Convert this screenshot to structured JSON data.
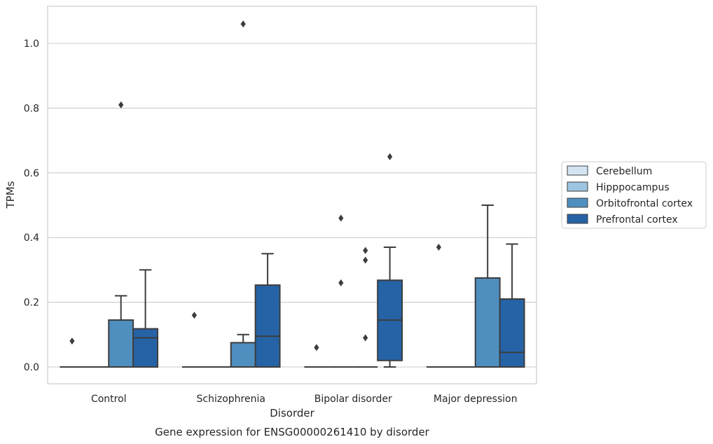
{
  "chart_data": {
    "type": "box",
    "title": "",
    "caption": "Gene expression for ENSG00000261410 by disorder",
    "xlabel": "Disorder",
    "ylabel": "TPMs",
    "ylim": [
      -0.05,
      1.12
    ],
    "yticks": [
      0.0,
      0.2,
      0.4,
      0.6,
      0.8,
      1.0
    ],
    "ytick_labels": [
      "0.0",
      "0.2",
      "0.4",
      "0.6",
      "0.8",
      "1.0"
    ],
    "grid": "horizontal",
    "legend_position": "right",
    "categories": [
      "Control",
      "Schizophrenia",
      "Bipolar disorder",
      "Major depression"
    ],
    "series": [
      {
        "name": "Cerebellum",
        "color": "#d3e4f3",
        "boxes": [
          {
            "q1": 0,
            "median": 0,
            "q3": 0,
            "whisker_low": 0,
            "whisker_high": 0,
            "outliers": [
              0.08
            ]
          },
          {
            "q1": 0,
            "median": 0,
            "q3": 0,
            "whisker_low": 0,
            "whisker_high": 0,
            "outliers": [
              0.16
            ]
          },
          {
            "q1": 0,
            "median": 0,
            "q3": 0,
            "whisker_low": 0,
            "whisker_high": 0,
            "outliers": [
              0.06
            ]
          },
          {
            "q1": 0,
            "median": 0,
            "q3": 0,
            "whisker_low": 0,
            "whisker_high": 0,
            "outliers": [
              0.37
            ]
          }
        ]
      },
      {
        "name": "Hipppocampus",
        "color": "#9dc4e0",
        "boxes": [
          {
            "q1": 0,
            "median": 0,
            "q3": 0,
            "whisker_low": 0,
            "whisker_high": 0,
            "outliers": []
          },
          {
            "q1": 0,
            "median": 0,
            "q3": 0,
            "whisker_low": 0,
            "whisker_high": 0,
            "outliers": []
          },
          {
            "q1": 0,
            "median": 0,
            "q3": 0,
            "whisker_low": 0,
            "whisker_high": 0,
            "outliers": [
              0.26,
              0.46
            ]
          },
          {
            "q1": 0,
            "median": 0,
            "q3": 0,
            "whisker_low": 0,
            "whisker_high": 0,
            "outliers": []
          }
        ]
      },
      {
        "name": "Orbitofrontal cortex",
        "color": "#4f8fc0",
        "boxes": [
          {
            "q1": 0,
            "median": 0,
            "q3": 0.145,
            "whisker_low": 0,
            "whisker_high": 0.22,
            "outliers": [
              0.81
            ]
          },
          {
            "q1": 0,
            "median": 0,
            "q3": 0.075,
            "whisker_low": 0,
            "whisker_high": 0.1,
            "outliers": [
              1.06
            ]
          },
          {
            "q1": 0,
            "median": 0,
            "q3": 0,
            "whisker_low": 0,
            "whisker_high": 0,
            "outliers": [
              0.09,
              0.33,
              0.36
            ]
          },
          {
            "q1": 0,
            "median": 0,
            "q3": 0.275,
            "whisker_low": 0,
            "whisker_high": 0.5,
            "outliers": []
          }
        ]
      },
      {
        "name": "Prefrontal cortex",
        "color": "#2563a6",
        "boxes": [
          {
            "q1": 0,
            "median": 0.09,
            "q3": 0.118,
            "whisker_low": 0,
            "whisker_high": 0.3,
            "outliers": []
          },
          {
            "q1": 0,
            "median": 0.095,
            "q3": 0.253,
            "whisker_low": 0,
            "whisker_high": 0.35,
            "outliers": []
          },
          {
            "q1": 0.02,
            "median": 0.145,
            "q3": 0.268,
            "whisker_low": 0,
            "whisker_high": 0.37,
            "outliers": [
              0.65
            ]
          },
          {
            "q1": 0,
            "median": 0.045,
            "q3": 0.21,
            "whisker_low": 0,
            "whisker_high": 0.38,
            "outliers": []
          }
        ]
      }
    ]
  }
}
